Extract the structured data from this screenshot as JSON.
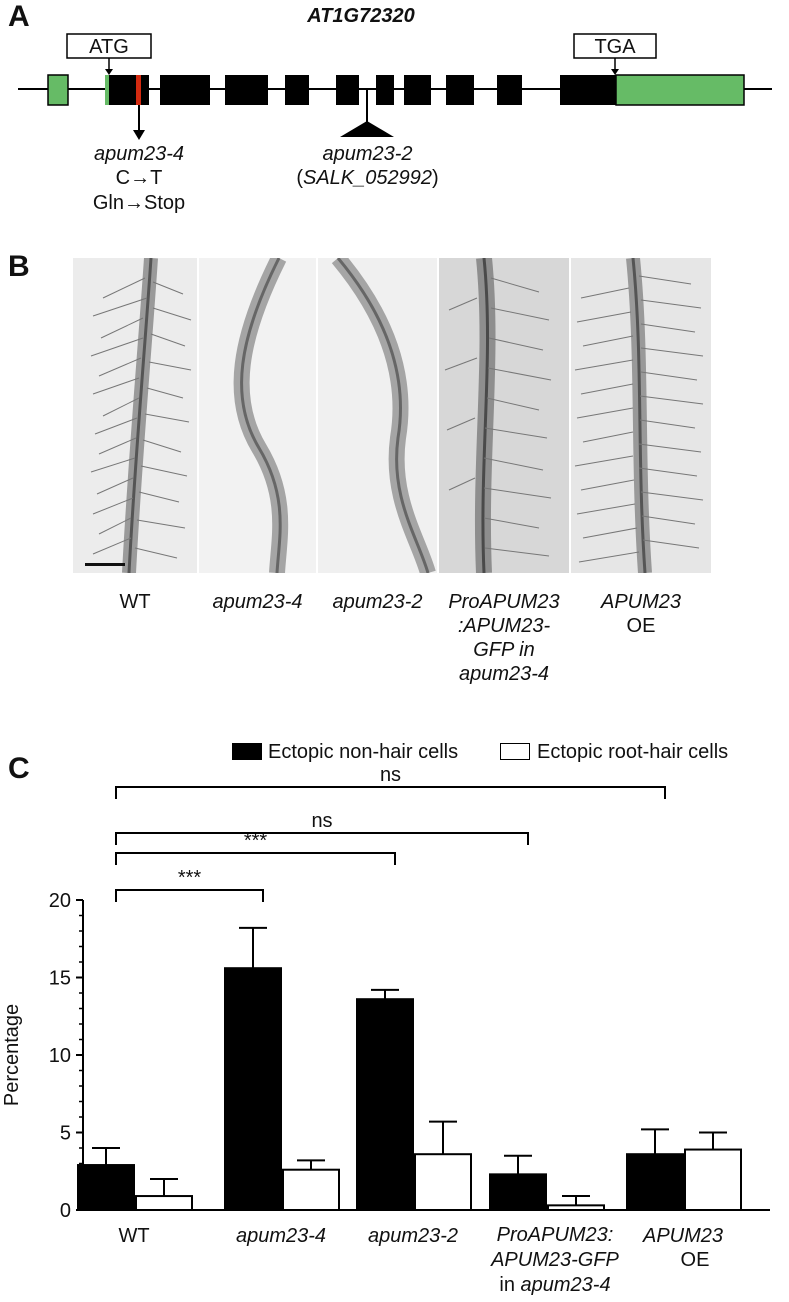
{
  "panel_a": {
    "label": "A",
    "gene": "AT1G72320",
    "start_codon": "ATG",
    "stop_codon": "TGA",
    "allele1": {
      "name": "apum23-4",
      "mutation": "C→T",
      "effect": "Gln→Stop"
    },
    "allele2": {
      "name": "apum23-2",
      "line_open": "(",
      "line": "SALK_052992",
      "line_close": ")"
    },
    "colors": {
      "utr": "#66bb66",
      "exon": "#000000",
      "point_mutation": "#d42a10"
    }
  },
  "panel_b": {
    "label": "B",
    "captions": [
      {
        "lines": [
          "WT"
        ],
        "italic": [
          false
        ]
      },
      {
        "lines": [
          "apum23-4"
        ],
        "italic": [
          true
        ]
      },
      {
        "lines": [
          "apum23-2"
        ],
        "italic": [
          true
        ]
      },
      {
        "lines": [
          "ProAPUM23",
          ":APUM23-",
          "GFP in",
          "apum23-4"
        ],
        "italic": [
          true,
          true,
          true,
          true
        ]
      },
      {
        "lines": [
          "APUM23",
          "OE"
        ],
        "italic": [
          true,
          false
        ]
      }
    ]
  },
  "panel_c": {
    "label": "C",
    "legend": [
      {
        "name": "Ectopic non-hair cells",
        "fill": "#000000"
      },
      {
        "name": "Ectopic root-hair cells",
        "fill": "#ffffff"
      }
    ],
    "significance": [
      "***",
      "***",
      "ns",
      "ns"
    ],
    "xcaption_extra": [
      "ProAPUM23:",
      "APUM23-GFP",
      "in apum23-4",
      "OE"
    ]
  },
  "chart_data": {
    "type": "bar",
    "categories": [
      "WT",
      "apum23-4",
      "apum23-2",
      "ProAPUM23:APUM23-GFP in apum23-4",
      "APUM23 OE"
    ],
    "series": [
      {
        "name": "Ectopic non-hair cells",
        "values": [
          2.9,
          15.6,
          13.6,
          2.3,
          3.6
        ],
        "errors": [
          1.1,
          2.6,
          0.6,
          1.2,
          1.6
        ]
      },
      {
        "name": "Ectopic root-hair cells",
        "values": [
          0.9,
          2.6,
          3.6,
          0.3,
          3.9
        ],
        "errors": [
          1.1,
          0.6,
          2.1,
          0.6,
          1.1
        ]
      }
    ],
    "ylabel": "Percentage",
    "xlabel": "",
    "ylim": [
      0,
      20
    ],
    "yticks": [
      "0",
      "5",
      "10",
      "15",
      "20"
    ],
    "comparisons": [
      {
        "from": "WT",
        "to": "apum23-4",
        "label": "***"
      },
      {
        "from": "WT",
        "to": "apum23-2",
        "label": "***"
      },
      {
        "from": "WT",
        "to": "ProAPUM23:APUM23-GFP in apum23-4",
        "label": "ns"
      },
      {
        "from": "WT",
        "to": "APUM23 OE",
        "label": "ns"
      }
    ],
    "grid": false,
    "legend_position": "top"
  }
}
